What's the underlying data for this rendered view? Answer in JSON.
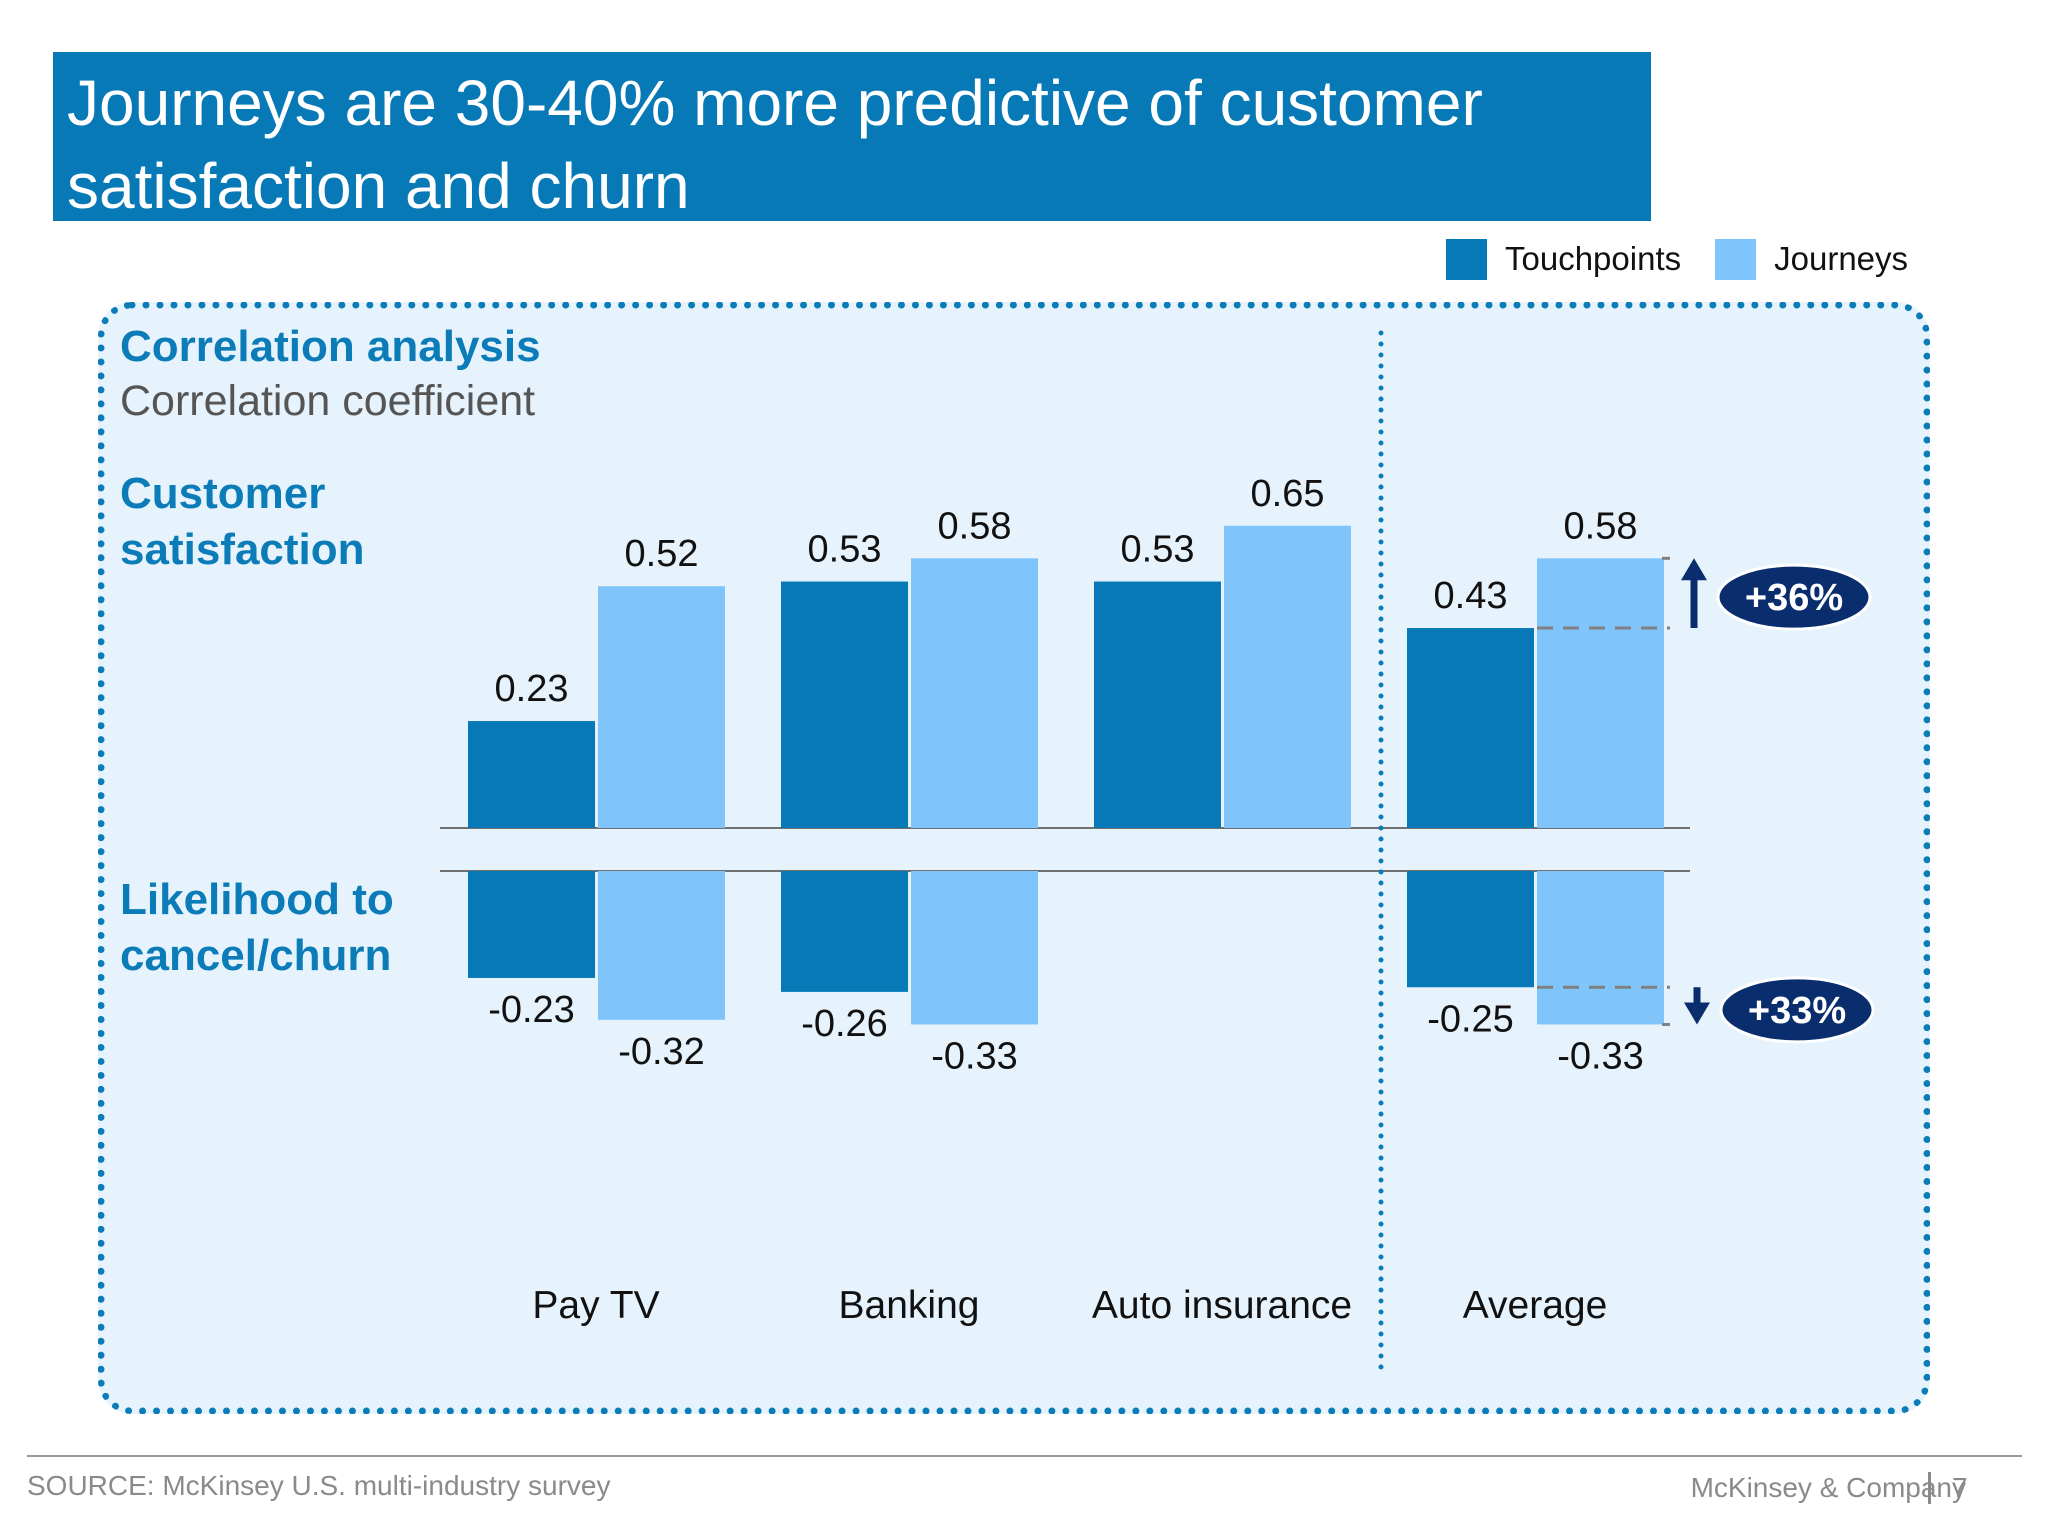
{
  "title": {
    "line1": "Journeys are 30-40% more predictive of customer",
    "line2": "satisfaction and churn"
  },
  "legend": [
    {
      "label": "Touchpoints",
      "color": "#0779b6"
    },
    {
      "label": "Journeys",
      "color": "#7fc5fb"
    }
  ],
  "panel": {
    "heading": "Correlation analysis",
    "subheading": "Correlation coefficient",
    "top_section": {
      "line1": "Customer",
      "line2": "satisfaction"
    },
    "bottom_section": {
      "line1": "Likelihood to",
      "line2": "cancel/churn"
    }
  },
  "chart_data": {
    "type": "bar",
    "categories": [
      "Pay TV",
      "Banking",
      "Auto insurance",
      "Average"
    ],
    "series": [
      {
        "name": "Touchpoints",
        "color": "#0779b6",
        "satisfaction": [
          0.23,
          0.53,
          0.53,
          0.43
        ],
        "churn": [
          -0.23,
          -0.26,
          null,
          -0.25
        ]
      },
      {
        "name": "Journeys",
        "color": "#7fc5fb",
        "satisfaction": [
          0.52,
          0.58,
          0.65,
          0.58
        ],
        "churn": [
          -0.32,
          -0.33,
          null,
          -0.33
        ]
      }
    ],
    "labels": {
      "satisfaction": [
        [
          "0.23",
          "0.52"
        ],
        [
          "0.53",
          "0.58"
        ],
        [
          "0.53",
          "0.65"
        ],
        [
          "0.43",
          "0.58"
        ]
      ],
      "churn": [
        [
          "-0.23",
          "-0.32"
        ],
        [
          "-0.26",
          "-0.33"
        ],
        [
          "",
          ""
        ],
        [
          "-0.25",
          "-0.33"
        ]
      ]
    },
    "callouts": [
      {
        "text": "+36%",
        "section": "satisfaction",
        "category": "Average",
        "direction": "up"
      },
      {
        "text": "+33%",
        "section": "churn",
        "category": "Average",
        "direction": "down"
      }
    ],
    "callout_color": "#0a2d6e"
  },
  "footer": {
    "source": "SOURCE: McKinsey U.S. multi-industry survey",
    "brand": "McKinsey & Company",
    "page": "7"
  }
}
